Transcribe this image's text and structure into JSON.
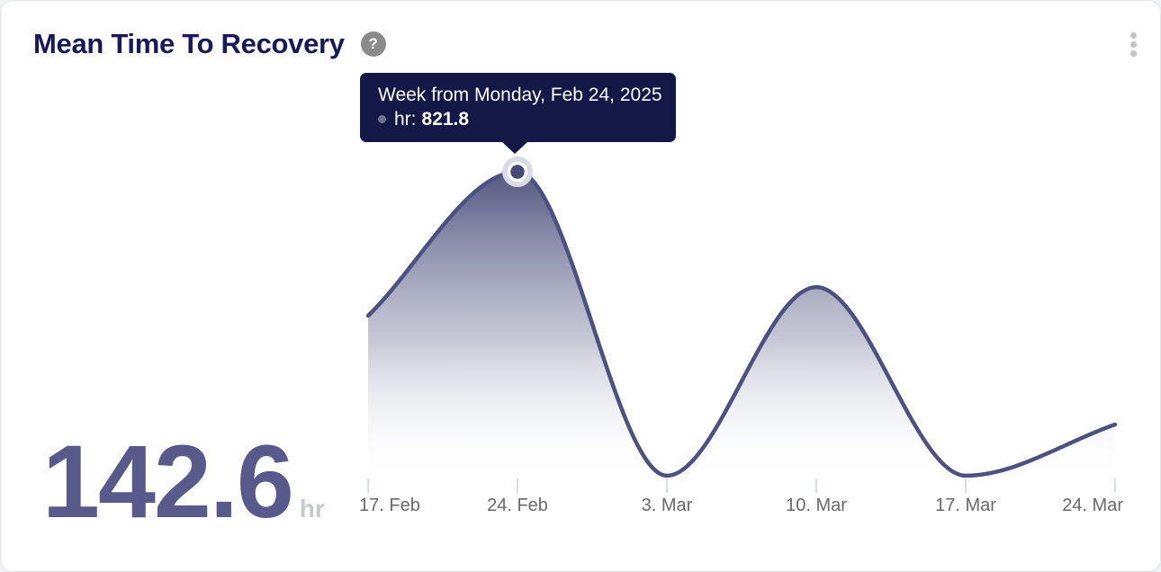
{
  "card": {
    "title": "Mean Time To Recovery"
  },
  "icons": {
    "help_glyph": "?",
    "help": "question-mark-circle",
    "menu": "kebab-vertical-dots"
  },
  "tooltip": {
    "title": "Week from Monday, Feb 24, 2025",
    "series_label": "hr:",
    "value": "821.8",
    "point_index": 1
  },
  "kpi": {
    "value": "142.6",
    "unit": "hr"
  },
  "chart_data": {
    "type": "area",
    "title": "Mean Time To Recovery",
    "x": [
      "Feb 17, 2025",
      "Feb 24, 2025",
      "Mar 3, 2025",
      "Mar 10, 2025",
      "Mar 17, 2025",
      "Mar 24, 2025"
    ],
    "x_labels": [
      "17. Feb",
      "24. Feb",
      "3. Mar",
      "10. Mar",
      "17. Mar",
      "24. Mar"
    ],
    "series": [
      {
        "name": "hr",
        "values": [
          435,
          821.8,
          5,
          512,
          5,
          142.6
        ]
      }
    ],
    "ylabel": "hr",
    "ylim": [
      0,
      860
    ],
    "grid": false,
    "legend": false,
    "highlighted_point": {
      "x": "Feb 24, 2025",
      "series": "hr",
      "value": 821.8
    }
  },
  "colors": {
    "line": "#4d5181",
    "area_top": "#4b4e7a",
    "title_text": "#18195a",
    "tooltip_bg": "#131847",
    "kpi_value": "#575a8b",
    "kpi_unit": "#c8c9cc",
    "axis_label": "#696969",
    "tick": "#c9d2e0",
    "marker_halo": "#d9dae3",
    "marker_fill": "#474a75"
  }
}
